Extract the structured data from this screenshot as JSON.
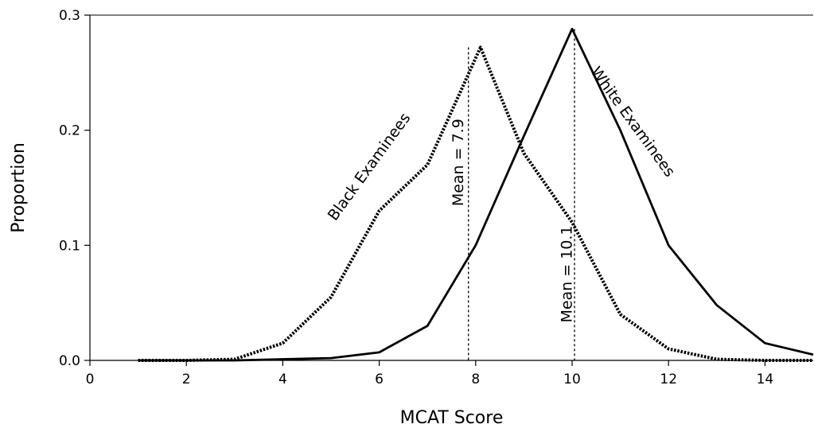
{
  "chart_data": {
    "type": "line",
    "title": "",
    "xlabel": "MCAT Score",
    "ylabel": "Proportion",
    "xlim": [
      0,
      15
    ],
    "ylim": [
      0,
      0.3
    ],
    "xticks": [
      0,
      2,
      4,
      6,
      8,
      10,
      12,
      14
    ],
    "yticks": [
      0.0,
      0.1,
      0.2,
      0.3
    ],
    "ytick_labels": [
      "0.0",
      "0.1",
      "0.2",
      "0.3"
    ],
    "grid": false,
    "legend": "none",
    "series": [
      {
        "key": "black",
        "style": "dotted",
        "color": "#000000",
        "x": [
          1,
          2,
          3,
          4,
          5,
          6,
          7,
          8.1,
          9,
          10,
          11,
          12,
          13,
          14,
          15
        ],
        "values": [
          0.0,
          0.0,
          0.001,
          0.015,
          0.055,
          0.13,
          0.17,
          0.272,
          0.18,
          0.12,
          0.04,
          0.01,
          0.001,
          0.0,
          0.0
        ]
      },
      {
        "key": "white",
        "style": "solid",
        "color": "#000000",
        "x": [
          1,
          2,
          3,
          4,
          5,
          6,
          7,
          8,
          9,
          10,
          11,
          12,
          13,
          14,
          15
        ],
        "values": [
          0.0,
          0.0,
          0.0,
          0.001,
          0.002,
          0.007,
          0.03,
          0.1,
          0.195,
          0.288,
          0.2,
          0.1,
          0.048,
          0.015,
          0.005
        ]
      }
    ],
    "annotations": [
      {
        "key": "black-label",
        "text": "Black Examinees",
        "x": 5.8,
        "y": 0.168,
        "angle": -54
      },
      {
        "key": "white-label",
        "text": "White Examinees",
        "x": 11.25,
        "y": 0.207,
        "angle": 54
      },
      {
        "key": "mean-black",
        "text": "Mean = 7.9",
        "x": 7.65,
        "y": 0.172,
        "angle": -90
      },
      {
        "key": "mean-white",
        "text": "Mean = 10.1",
        "x": 9.9,
        "y": 0.075,
        "angle": -90
      }
    ],
    "reference_lines": [
      {
        "key": "mean-black-line",
        "x": 7.85,
        "y_top": 0.272,
        "style": "dashed"
      },
      {
        "key": "mean-white-line",
        "x": 10.05,
        "y_top": 0.288,
        "style": "dashed"
      }
    ]
  }
}
